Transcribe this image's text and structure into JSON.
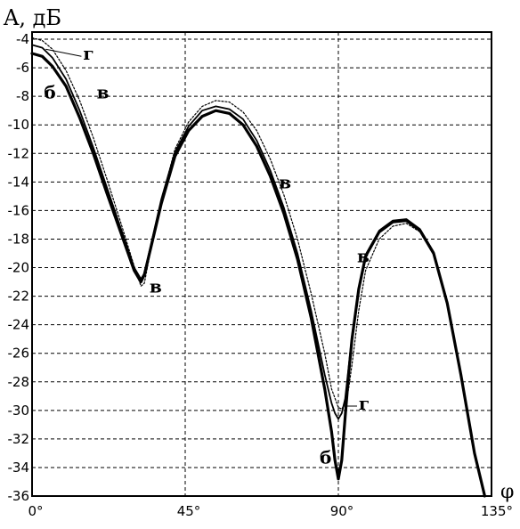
{
  "chart_data": {
    "type": "line",
    "title": "",
    "ylabel": "A, дБ",
    "xlabel": "φ",
    "xlim": [
      0,
      135
    ],
    "ylim": [
      -36,
      -3.5
    ],
    "x_ticks": [
      0,
      45,
      90,
      135
    ],
    "x_tick_labels": [
      "0°",
      "45°",
      "90°",
      "135°"
    ],
    "y_ticks": [
      -4,
      -6,
      -8,
      -10,
      -12,
      -14,
      -16,
      -18,
      -20,
      -22,
      -24,
      -26,
      -28,
      -30,
      -32,
      -34,
      -36
    ],
    "y_tick_labels": [
      "-4",
      "-6",
      "-8",
      "-10",
      "-12",
      "-14",
      "-16",
      "-18",
      "-20",
      "-22",
      "-24",
      "-26",
      "-28",
      "-30",
      "-32",
      "-34",
      "-36"
    ],
    "grid": true,
    "series": [
      {
        "name": "б",
        "style": "solid-thick",
        "x": [
          0,
          3,
          6,
          10,
          14,
          18,
          22,
          26,
          30,
          32,
          33,
          35,
          38,
          42,
          46,
          50,
          54,
          58,
          62,
          66,
          70,
          74,
          78,
          82,
          86,
          88,
          89,
          90,
          91,
          92,
          93,
          94,
          96,
          98,
          102,
          106,
          110,
          114,
          118,
          122,
          126,
          130,
          133
        ],
        "y": [
          -5.0,
          -5.2,
          -5.9,
          -7.3,
          -9.5,
          -12.0,
          -14.8,
          -17.5,
          -20.2,
          -21.0,
          -20.5,
          -18.5,
          -15.5,
          -12.2,
          -10.4,
          -9.4,
          -9.0,
          -9.2,
          -10.0,
          -11.5,
          -13.6,
          -16.2,
          -19.4,
          -23.5,
          -28.5,
          -31.5,
          -33.5,
          -34.8,
          -33.5,
          -30.5,
          -27.5,
          -25.0,
          -21.5,
          -19.2,
          -17.5,
          -16.8,
          -16.7,
          -17.4,
          -19.0,
          -22.5,
          -27.5,
          -33.0,
          -36.0
        ]
      },
      {
        "name": "г",
        "style": "solid",
        "x": [
          0,
          3,
          6,
          10,
          14,
          18,
          22,
          26,
          30,
          32,
          33,
          35,
          38,
          42,
          46,
          50,
          54,
          58,
          62,
          66,
          70,
          74,
          78,
          82,
          86,
          88,
          89,
          90,
          91,
          92,
          93,
          94,
          96,
          98,
          102,
          106,
          110,
          114,
          118,
          122,
          126,
          130,
          133
        ],
        "y": [
          -4.4,
          -4.6,
          -5.3,
          -6.8,
          -9.0,
          -11.6,
          -14.4,
          -17.2,
          -20.0,
          -20.8,
          -20.4,
          -18.3,
          -15.2,
          -11.9,
          -10.1,
          -9.0,
          -8.7,
          -8.9,
          -9.6,
          -11.1,
          -13.2,
          -15.8,
          -19.0,
          -23.0,
          -27.5,
          -29.5,
          -30.2,
          -30.6,
          -30.2,
          -29.2,
          -27.0,
          -24.8,
          -21.4,
          -19.1,
          -17.4,
          -16.7,
          -16.6,
          -17.3,
          -18.9,
          -22.4,
          -27.4,
          -33.0,
          -36.0
        ]
      },
      {
        "name": "в",
        "style": "dotted",
        "x": [
          0,
          3,
          6,
          10,
          14,
          18,
          22,
          26,
          30,
          32,
          33,
          35,
          38,
          42,
          46,
          50,
          54,
          58,
          62,
          66,
          70,
          74,
          78,
          82,
          86,
          88,
          90,
          91,
          92,
          93,
          94,
          96,
          98,
          102,
          106,
          110,
          114,
          118,
          122,
          126,
          130,
          133
        ],
        "y": [
          -3.9,
          -4.1,
          -4.7,
          -6.2,
          -8.3,
          -10.9,
          -13.8,
          -16.8,
          -19.9,
          -21.3,
          -21.1,
          -18.6,
          -15.3,
          -11.7,
          -9.8,
          -8.7,
          -8.3,
          -8.4,
          -9.1,
          -10.4,
          -12.4,
          -14.9,
          -18.0,
          -21.8,
          -26.0,
          -28.5,
          -29.8,
          -29.9,
          -29.5,
          -28.5,
          -26.8,
          -23.0,
          -20.2,
          -18.0,
          -17.1,
          -16.9,
          -17.5,
          -19.1,
          -22.6,
          -27.6,
          -33.1,
          -36.0
        ]
      }
    ],
    "annotations": [
      {
        "text": "г",
        "x": 15,
        "y": -5.0
      },
      {
        "text": "б",
        "x": 3.5,
        "y": -7.7
      },
      {
        "text": "в",
        "x": 19,
        "y": -7.7
      },
      {
        "text": "в",
        "x": 34.5,
        "y": -21.3
      },
      {
        "text": "в",
        "x": 72.5,
        "y": -14.0
      },
      {
        "text": "в",
        "x": 95.5,
        "y": -19.2
      },
      {
        "text": "г",
        "x": 96,
        "y": -29.5
      },
      {
        "text": "б",
        "x": 84.5,
        "y": -33.3
      }
    ]
  }
}
